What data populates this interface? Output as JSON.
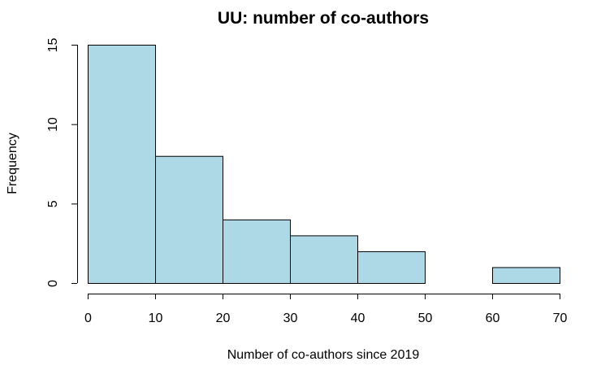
{
  "chart_data": {
    "type": "bar",
    "subtype": "histogram",
    "title": "UU: number of co-authors",
    "xlabel": "Number of co-authors since 2019",
    "ylabel": "Frequency",
    "bins": [
      {
        "from": 0,
        "to": 10,
        "count": 15
      },
      {
        "from": 10,
        "to": 20,
        "count": 8
      },
      {
        "from": 20,
        "to": 30,
        "count": 4
      },
      {
        "from": 30,
        "to": 40,
        "count": 3
      },
      {
        "from": 40,
        "to": 50,
        "count": 2
      },
      {
        "from": 50,
        "to": 60,
        "count": 0
      },
      {
        "from": 60,
        "to": 70,
        "count": 1
      }
    ],
    "xlim": [
      0,
      70
    ],
    "ylim": [
      0,
      15
    ],
    "xticks": [
      "0",
      "10",
      "20",
      "30",
      "40",
      "50",
      "60",
      "70"
    ],
    "yticks": [
      "0",
      "5",
      "10",
      "15"
    ],
    "grid": false,
    "colors": {
      "bar_fill": "#add8e6",
      "bar_stroke": "#000000"
    }
  }
}
